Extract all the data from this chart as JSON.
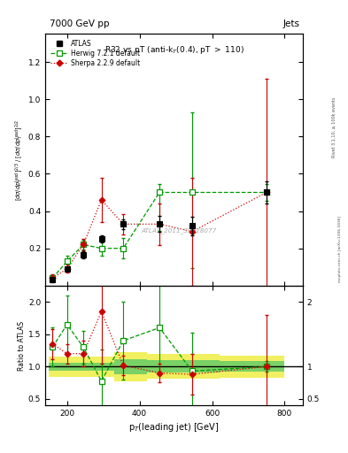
{
  "title_top": "7000 GeV pp",
  "title_right": "Jets",
  "plot_title": "R32 vs pT (anti-k$_T$(0.4), pT $>$ 110)",
  "watermark": "ATLAS_2011_S9128077",
  "right_label": "mcplots.cern.ch [arXiv:1306.3436]",
  "right_label2": "Rivet 3.1.10, ≥ 100k events",
  "atlas_x": [
    160,
    200,
    245,
    295,
    355,
    455,
    545,
    750
  ],
  "atlas_y": [
    0.03,
    0.09,
    0.165,
    0.25,
    0.33,
    0.33,
    0.32,
    0.5
  ],
  "atlas_ylo": [
    0.025,
    0.082,
    0.148,
    0.23,
    0.305,
    0.288,
    0.27,
    0.44
  ],
  "atlas_yhi": [
    0.035,
    0.098,
    0.182,
    0.27,
    0.355,
    0.372,
    0.37,
    0.56
  ],
  "herwig_x": [
    160,
    200,
    245,
    295,
    355,
    455,
    545,
    750
  ],
  "herwig_y": [
    0.04,
    0.13,
    0.22,
    0.2,
    0.2,
    0.5,
    0.5,
    0.5
  ],
  "herwig_ylo": [
    0.022,
    0.1,
    0.195,
    0.162,
    0.145,
    0.295,
    0.095,
    0.455
  ],
  "herwig_yhi": [
    0.058,
    0.16,
    0.245,
    0.238,
    0.255,
    0.545,
    0.93,
    0.545
  ],
  "sherpa_x": [
    160,
    200,
    245,
    295,
    355,
    455,
    545,
    750
  ],
  "sherpa_y": [
    0.04,
    0.09,
    0.22,
    0.46,
    0.33,
    0.33,
    0.29,
    0.5
  ],
  "sherpa_ylo": [
    0.018,
    0.068,
    0.188,
    0.34,
    0.275,
    0.218,
    0.0,
    -0.11
  ],
  "sherpa_yhi": [
    0.062,
    0.112,
    0.252,
    0.58,
    0.385,
    0.442,
    0.58,
    1.11
  ],
  "ratio_herwig_x": [
    160,
    200,
    245,
    295,
    355,
    455,
    545,
    750
  ],
  "ratio_herwig_y": [
    1.3,
    1.65,
    1.3,
    0.775,
    1.4,
    1.6,
    0.93,
    1.0
  ],
  "ratio_herwig_ylo": [
    1.0,
    1.2,
    1.05,
    0.28,
    0.8,
    0.87,
    0.33,
    0.92
  ],
  "ratio_herwig_yhi": [
    1.6,
    2.1,
    1.55,
    1.27,
    2.0,
    2.33,
    1.53,
    1.08
  ],
  "ratio_sherpa_x": [
    160,
    200,
    245,
    295,
    355,
    455,
    545,
    750
  ],
  "ratio_sherpa_y": [
    1.35,
    1.2,
    1.2,
    1.85,
    1.02,
    0.9,
    0.88,
    1.0
  ],
  "ratio_sherpa_ylo": [
    1.12,
    1.05,
    1.0,
    1.05,
    0.87,
    0.758,
    0.57,
    0.21
  ],
  "ratio_sherpa_yhi": [
    1.58,
    1.35,
    1.4,
    2.65,
    1.17,
    1.042,
    1.19,
    1.79
  ],
  "band_edges": [
    150,
    210,
    270,
    330,
    420,
    500,
    620,
    800
  ],
  "band_green_lo": [
    0.935,
    0.935,
    0.935,
    0.88,
    0.905,
    0.905,
    0.92,
    0.92
  ],
  "band_green_hi": [
    1.065,
    1.065,
    1.065,
    1.12,
    1.095,
    1.095,
    1.08,
    1.08
  ],
  "band_yellow_lo": [
    0.845,
    0.845,
    0.845,
    0.775,
    0.81,
    0.81,
    0.83,
    0.83
  ],
  "band_yellow_hi": [
    1.155,
    1.155,
    1.155,
    1.225,
    1.19,
    1.19,
    1.17,
    1.17
  ],
  "xlim": [
    140,
    850
  ],
  "ylim_main": [
    0.0,
    1.35
  ],
  "ylim_ratio": [
    0.4,
    2.25
  ],
  "yticks_main": [
    0.2,
    0.4,
    0.6,
    0.8,
    1.0,
    1.2
  ],
  "yticks_ratio": [
    0.5,
    1.0,
    1.5,
    2.0
  ],
  "xticks": [
    200,
    400,
    600,
    800
  ],
  "atlas_color": "#000000",
  "herwig_color": "#009900",
  "sherpa_color": "#cc0000",
  "green_band": "#66cc66",
  "yellow_band": "#eeee44"
}
